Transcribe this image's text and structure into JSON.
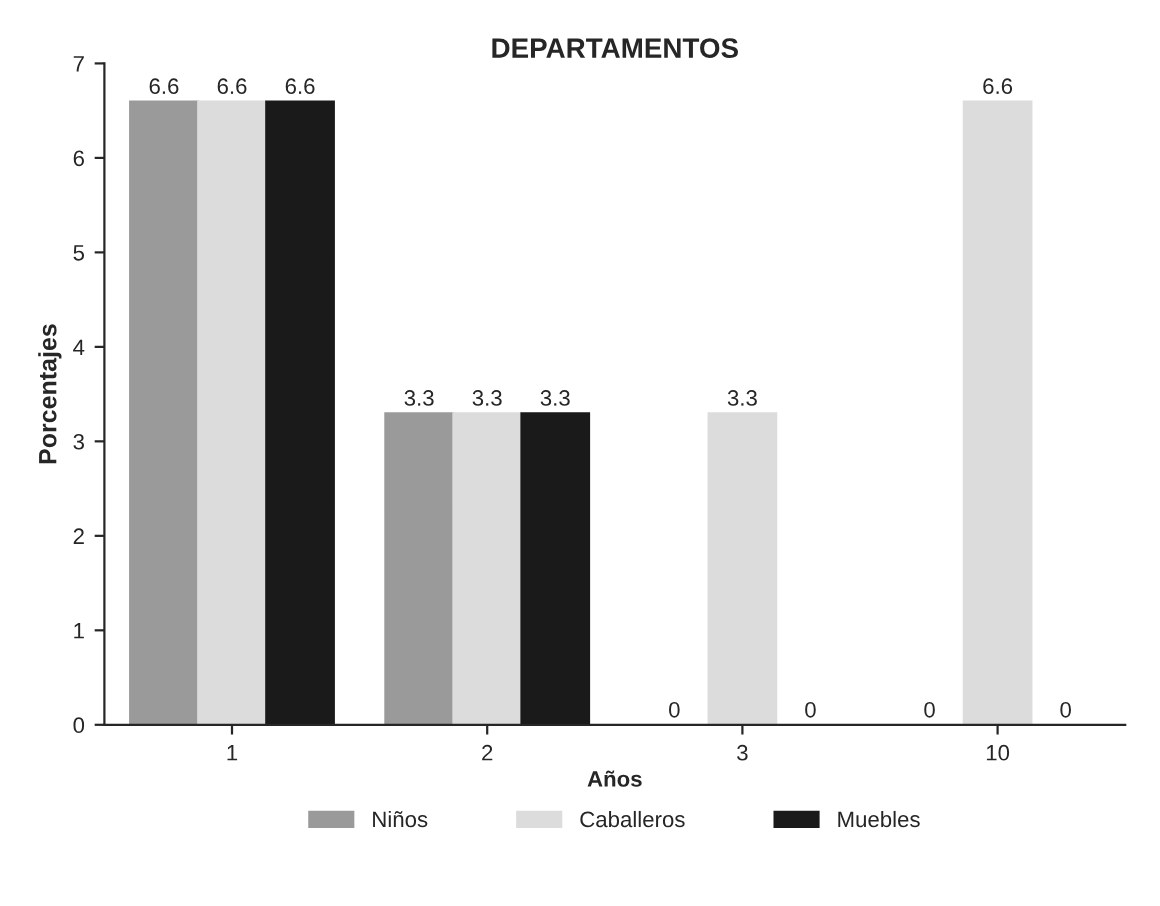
{
  "chart_data": {
    "type": "bar",
    "title": "DEPARTAMENTOS",
    "xlabel": "Años",
    "ylabel": "Porcentajes",
    "categories": [
      "1",
      "2",
      "3",
      "10"
    ],
    "series": [
      {
        "name": "Niños",
        "color": "#9a9a9a",
        "values": [
          6.6,
          3.3,
          0,
          0
        ]
      },
      {
        "name": "Caballeros",
        "color": "#dcdcdc",
        "values": [
          6.6,
          3.3,
          3.3,
          6.6
        ]
      },
      {
        "name": "Muebles",
        "color": "#1a1a1a",
        "values": [
          6.6,
          3.3,
          0,
          0
        ]
      }
    ],
    "ylim": [
      0,
      7
    ],
    "yticks": [
      0,
      1,
      2,
      3,
      4,
      5,
      6,
      7
    ],
    "data_labels": true,
    "grid": false,
    "legend": "bottom"
  }
}
